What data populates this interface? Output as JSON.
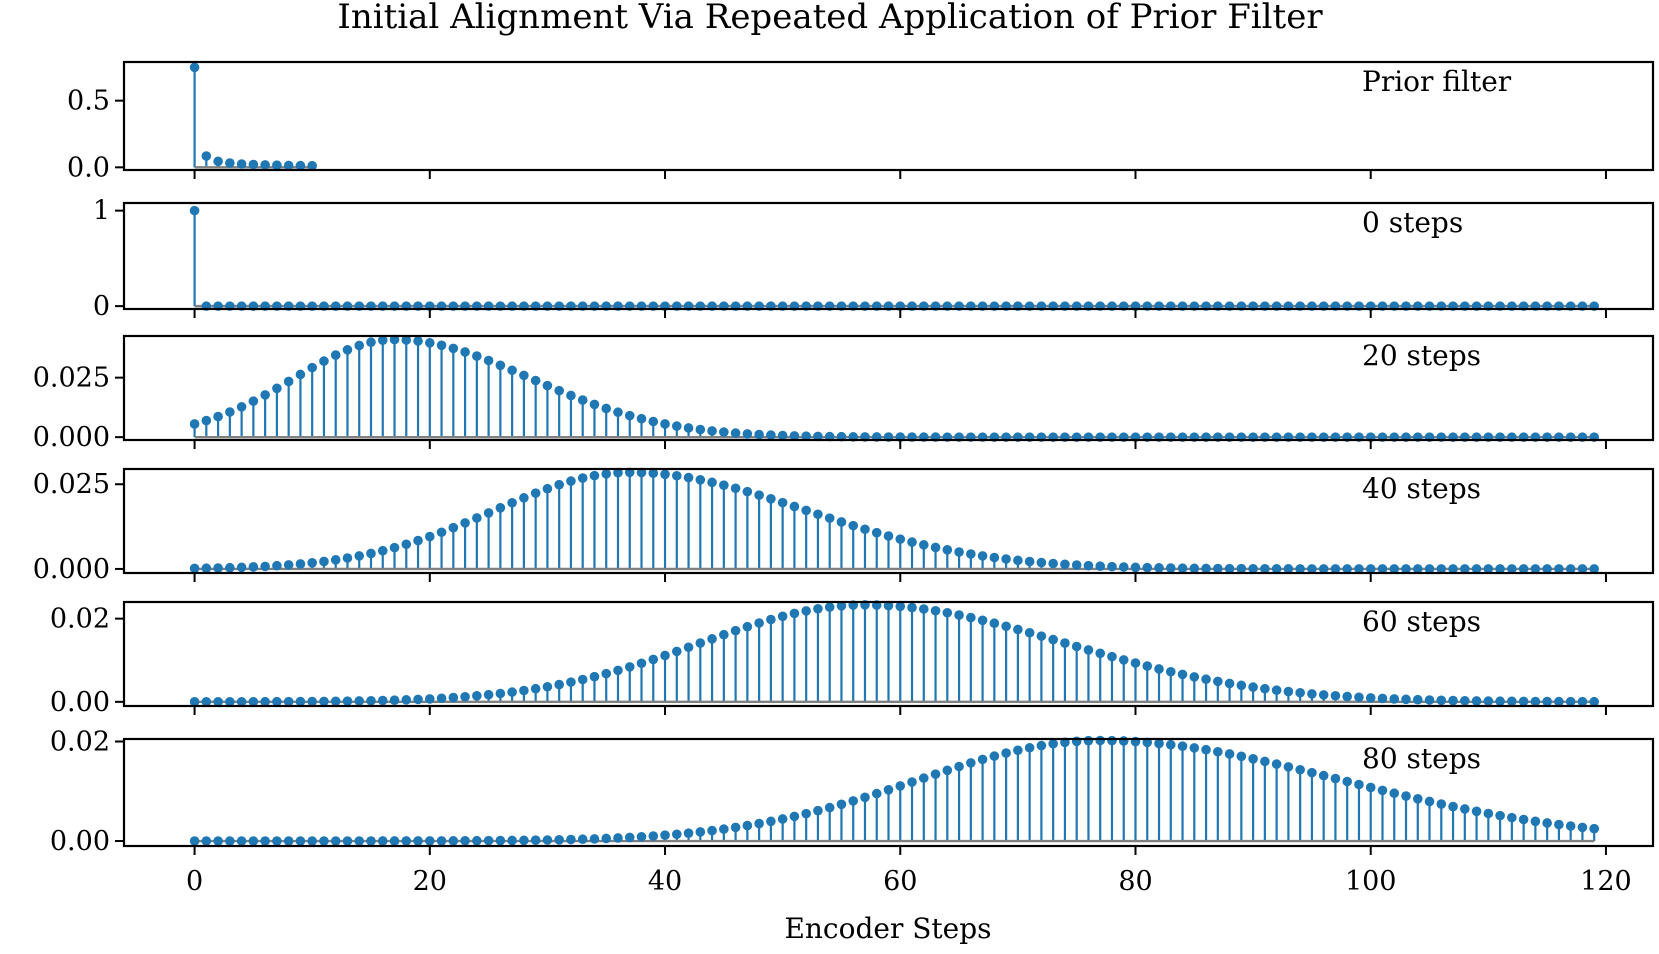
{
  "title": "Initial Alignment Via Repeated Application of Prior Filter",
  "xlabel": "Encoder Steps",
  "colors": {
    "stem": "#1f77b4",
    "baseline": "#808080",
    "axes": "#000000",
    "background": "#ffffff"
  },
  "chart_data": [
    {
      "type": "stem",
      "panel_label": "Prior filter",
      "xlim": [
        -6,
        124
      ],
      "ylim": [
        -0.02,
        0.79
      ],
      "yticks": [
        0,
        0.5
      ],
      "ytick_labels": [
        "0.0",
        "0.5"
      ],
      "x": [
        0,
        1,
        2,
        3,
        4,
        5,
        6,
        7,
        8,
        9,
        10
      ],
      "values": [
        0.75,
        0.085,
        0.045,
        0.032,
        0.025,
        0.021,
        0.018,
        0.016,
        0.014,
        0.013,
        0.012
      ]
    },
    {
      "type": "stem",
      "panel_label": "0 steps",
      "xlim": [
        -6,
        124
      ],
      "ylim": [
        -0.03,
        1.08
      ],
      "yticks": [
        0,
        1
      ],
      "ytick_labels": [
        "0",
        "1"
      ],
      "generator": {
        "kind": "impulse",
        "n": 120
      }
    },
    {
      "type": "stem",
      "panel_label": "20 steps",
      "xlim": [
        -6,
        124
      ],
      "ylim": [
        -0.0012,
        0.0425
      ],
      "yticks": [
        0,
        0.025
      ],
      "ytick_labels": [
        "0.000",
        "0.025"
      ],
      "generator": {
        "kind": "skewed-bump",
        "n": 120,
        "peak_x": 17,
        "peak": 0.041,
        "sigma_left": 8.5,
        "sigma_right": 11.5
      }
    },
    {
      "type": "stem",
      "panel_label": "40 steps",
      "xlim": [
        -6,
        124
      ],
      "ylim": [
        -0.0012,
        0.0295
      ],
      "yticks": [
        0,
        0.025
      ],
      "ytick_labels": [
        "0.000",
        "0.025"
      ],
      "generator": {
        "kind": "skewed-bump",
        "n": 120,
        "peak_x": 37,
        "peak": 0.0285,
        "sigma_left": 11.5,
        "sigma_right": 15
      }
    },
    {
      "type": "stem",
      "panel_label": "60 steps",
      "xlim": [
        -6,
        124
      ],
      "ylim": [
        -0.001,
        0.024
      ],
      "yticks": [
        0,
        0.02
      ],
      "ytick_labels": [
        "0.00",
        "0.02"
      ],
      "generator": {
        "kind": "skewed-bump",
        "n": 120,
        "peak_x": 57,
        "peak": 0.0233,
        "sigma_left": 14,
        "sigma_right": 17
      }
    },
    {
      "type": "stem",
      "panel_label": "80 steps",
      "xlim": [
        -6,
        124
      ],
      "ylim": [
        -0.001,
        0.0205
      ],
      "yticks": [
        0,
        0.02
      ],
      "ytick_labels": [
        "0.00",
        "0.02"
      ],
      "generator": {
        "kind": "skewed-bump",
        "n": 120,
        "peak_x": 77,
        "peak": 0.0202,
        "sigma_left": 15.5,
        "sigma_right": 20.5
      }
    }
  ],
  "xticks": [
    0,
    20,
    40,
    60,
    80,
    100,
    120
  ],
  "xtick_labels": [
    "0",
    "20",
    "40",
    "60",
    "80",
    "100",
    "120"
  ]
}
